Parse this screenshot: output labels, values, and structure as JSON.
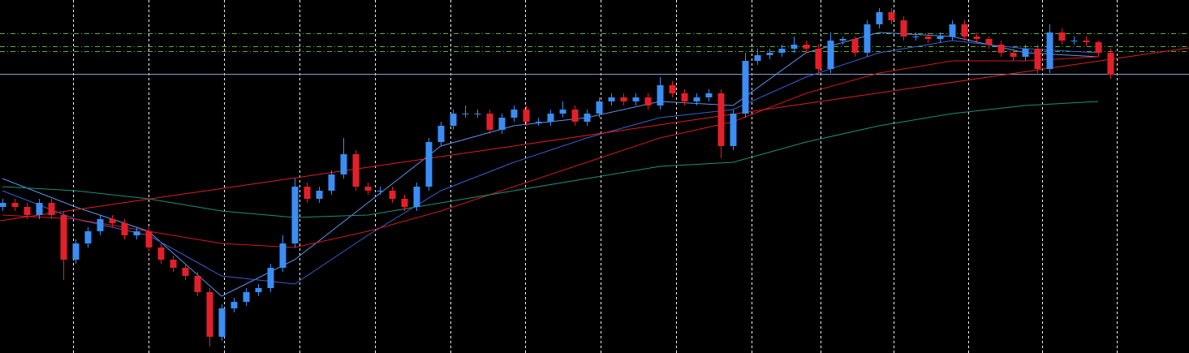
{
  "chart_data": {
    "type": "candlestick",
    "xlim": [
      -0.2,
      97.45
    ],
    "ylim": [
      0,
      435
    ],
    "xticks": [
      5.8,
      12,
      18.2,
      24.4,
      30.6,
      36.8,
      42.9,
      49.1,
      55.3,
      61.5,
      67.2,
      73.2,
      79.3,
      85.4,
      91.5
    ],
    "grid": true,
    "grid_color": "#ffffff",
    "up_color": "#3a8ef5",
    "down_color": "#e3202a",
    "open": [
      180,
      185,
      180,
      170,
      185,
      170,
      115,
      135,
      150,
      165,
      160,
      145,
      150,
      130,
      115,
      105,
      95,
      75,
      20,
      55,
      63,
      75,
      80,
      105,
      135,
      205,
      190,
      200,
      220,
      245,
      205,
      200,
      200,
      190,
      180,
      205,
      260,
      280,
      295,
      295,
      295,
      275,
      290,
      300,
      285,
      285,
      295,
      300,
      285,
      295,
      310,
      315,
      310,
      315,
      305,
      330,
      320,
      310,
      315,
      320,
      255,
      295,
      360,
      367,
      370,
      375,
      380,
      375,
      350,
      385,
      387,
      370,
      405,
      420,
      410,
      390,
      390,
      387,
      390,
      405,
      390,
      387,
      380,
      370,
      365,
      375,
      350,
      395,
      385,
      385,
      383,
      370
    ],
    "high": [
      190,
      190,
      185,
      190,
      190,
      175,
      140,
      155,
      170,
      170,
      165,
      155,
      155,
      135,
      120,
      110,
      100,
      80,
      60,
      68,
      80,
      85,
      110,
      145,
      215,
      210,
      205,
      225,
      265,
      250,
      210,
      205,
      205,
      195,
      210,
      265,
      285,
      300,
      305,
      300,
      300,
      295,
      305,
      305,
      290,
      300,
      310,
      305,
      300,
      315,
      320,
      320,
      320,
      320,
      340,
      335,
      325,
      320,
      325,
      325,
      300,
      370,
      375,
      375,
      380,
      390,
      385,
      380,
      395,
      390,
      390,
      410,
      425,
      425,
      415,
      395,
      395,
      395,
      410,
      410,
      395,
      390,
      385,
      375,
      380,
      380,
      405,
      400,
      390,
      390,
      385,
      375
    ],
    "low": [
      175,
      175,
      165,
      165,
      165,
      90,
      110,
      130,
      145,
      155,
      140,
      140,
      125,
      110,
      100,
      90,
      70,
      8,
      15,
      50,
      58,
      70,
      75,
      100,
      130,
      185,
      185,
      195,
      215,
      200,
      195,
      195,
      185,
      175,
      175,
      200,
      255,
      275,
      290,
      290,
      270,
      270,
      285,
      280,
      280,
      280,
      290,
      280,
      280,
      290,
      305,
      305,
      305,
      300,
      300,
      315,
      305,
      305,
      310,
      240,
      250,
      290,
      355,
      362,
      365,
      370,
      370,
      345,
      345,
      380,
      365,
      365,
      400,
      405,
      385,
      385,
      382,
      382,
      385,
      385,
      382,
      375,
      365,
      360,
      360,
      345,
      345,
      380,
      380,
      378,
      365,
      338
    ],
    "close": [
      185,
      180,
      170,
      185,
      170,
      115,
      135,
      150,
      165,
      160,
      145,
      150,
      130,
      115,
      105,
      95,
      75,
      20,
      55,
      63,
      75,
      80,
      105,
      135,
      205,
      190,
      200,
      220,
      245,
      205,
      200,
      200,
      190,
      180,
      205,
      260,
      280,
      295,
      295,
      295,
      275,
      290,
      300,
      285,
      285,
      295,
      300,
      285,
      295,
      310,
      315,
      310,
      315,
      305,
      330,
      320,
      310,
      315,
      320,
      255,
      295,
      360,
      367,
      370,
      375,
      380,
      375,
      350,
      385,
      387,
      370,
      405,
      420,
      410,
      390,
      390,
      387,
      390,
      405,
      390,
      387,
      380,
      370,
      365,
      375,
      350,
      395,
      385,
      385,
      383,
      370,
      343
    ],
    "overlays": [
      {
        "color": "#5f95e8",
        "x": [
          0,
          6,
          12,
          18,
          24,
          30,
          36,
          42,
          48,
          54,
          60,
          66,
          72,
          78,
          84,
          90
        ],
        "values": [
          215,
          180,
          150,
          70,
          115,
          185,
          255,
          280,
          290,
          310,
          305,
          370,
          395,
          390,
          370,
          365
        ]
      },
      {
        "color": "#3a5fd0",
        "x": [
          0,
          6,
          12,
          18,
          24,
          30,
          36,
          42,
          48,
          54,
          60,
          66,
          72,
          78,
          84,
          90
        ],
        "values": [
          200,
          165,
          145,
          95,
          85,
          145,
          200,
          235,
          265,
          290,
          300,
          340,
          370,
          385,
          375,
          370
        ]
      },
      {
        "color": "#d01c1c",
        "x": [
          0,
          6,
          12,
          18,
          24,
          30,
          36,
          42,
          48,
          54,
          60,
          66,
          72,
          78,
          84,
          90
        ],
        "values": [
          170,
          165,
          150,
          135,
          130,
          150,
          175,
          205,
          235,
          265,
          285,
          320,
          345,
          360,
          360,
          365
        ]
      },
      {
        "color": "#1f8f7a",
        "x": [
          0,
          6,
          12,
          18,
          24,
          30,
          36,
          42,
          48,
          54,
          60,
          66,
          72,
          78,
          84,
          90
        ],
        "values": [
          205,
          200,
          190,
          175,
          167,
          170,
          185,
          200,
          215,
          230,
          235,
          260,
          280,
          295,
          305,
          310
        ]
      }
    ],
    "trendlines": [
      {
        "color": "#e02020",
        "x": [
          -0.2,
          97.45
        ],
        "values": [
          163,
          376
        ]
      }
    ],
    "hlines": [
      {
        "value": 394,
        "color": "#5fae3a",
        "style": "dashdot"
      },
      {
        "value": 378,
        "color": "#5fae3a",
        "style": "dashdot"
      },
      {
        "value": 372,
        "color": "#5fae3a",
        "style": "dashdot"
      },
      {
        "value": 344,
        "color": "#8aa4c8",
        "style": "solid"
      }
    ]
  }
}
